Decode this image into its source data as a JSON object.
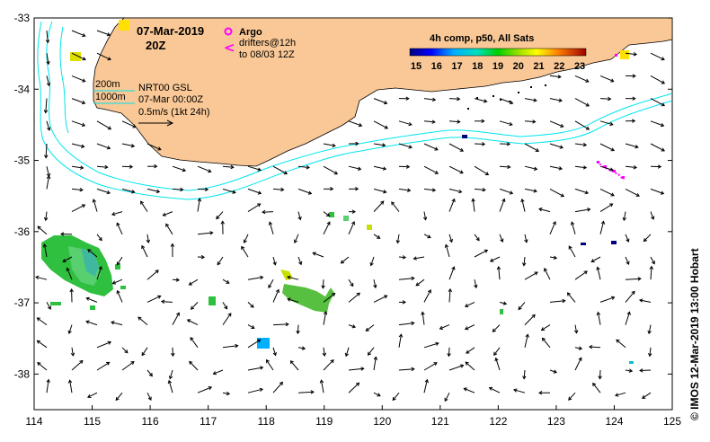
{
  "map": {
    "date_line1": "07-Mar-2019",
    "date_line2": "20Z",
    "argo_label": "Argo",
    "drifters_line1": "drifters@12h",
    "drifters_line2": "to 08/03 12Z",
    "iso200_label": "200m",
    "iso1000_label": "1000m",
    "product_line1": "NRT00 GSL",
    "product_line2": "07-Mar 00:00Z",
    "velocity_scale": "0.5m/s (1kt 24h)",
    "colorbar_title": "4h comp, p50, All Sats",
    "colorbar_ticks": [
      "15",
      "16",
      "17",
      "18",
      "19",
      "20",
      "21",
      "22",
      "23"
    ],
    "credit": "© IMOS 12-Mar-2019 13:00 Hobart",
    "lon_ticks": [
      "114",
      "115",
      "116",
      "117",
      "118",
      "119",
      "120",
      "121",
      "122",
      "123",
      "124",
      "125"
    ],
    "lat_ticks": [
      "-33",
      "-34",
      "-35",
      "-36",
      "-37",
      "-38"
    ],
    "lon_range": [
      114,
      125
    ],
    "lat_range": [
      -38.5,
      -33
    ],
    "colors": {
      "land": "#f9c896",
      "isobath": "#00e5ee",
      "argo": "#ff00ff",
      "drifter": "#ff00ff"
    }
  }
}
